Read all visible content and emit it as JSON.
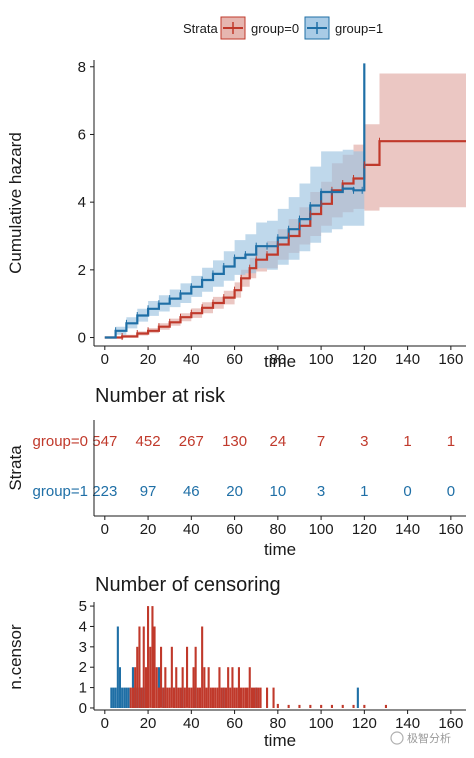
{
  "chart_data": [
    {
      "type": "line",
      "step": true,
      "xlabel": "time",
      "ylabel": "Cumulative hazard",
      "xlim": [
        -5,
        167
      ],
      "ylim": [
        -0.25,
        8.2
      ],
      "xticks": [
        0,
        20,
        40,
        60,
        80,
        100,
        120,
        140,
        160
      ],
      "yticks": [
        0,
        2,
        4,
        6,
        8
      ],
      "legend": {
        "title": "Strata",
        "position": "top"
      },
      "series": [
        {
          "name": "group=0",
          "color": "#c0392b",
          "fill": "#e0a9a3",
          "x": [
            0,
            8,
            15,
            20,
            25,
            30,
            35,
            40,
            45,
            50,
            55,
            60,
            63,
            67,
            70,
            75,
            80,
            85,
            90,
            95,
            100,
            105,
            110,
            115,
            120,
            127,
            167
          ],
          "y": [
            0,
            0.03,
            0.12,
            0.2,
            0.32,
            0.45,
            0.6,
            0.72,
            0.88,
            1.02,
            1.18,
            1.4,
            1.75,
            2.05,
            2.3,
            2.45,
            2.75,
            3.0,
            3.3,
            3.65,
            3.95,
            4.35,
            4.55,
            4.7,
            5.1,
            5.8,
            5.8
          ],
          "lower": [
            0,
            0,
            0.06,
            0.13,
            0.23,
            0.35,
            0.48,
            0.58,
            0.72,
            0.85,
            0.98,
            1.18,
            1.5,
            1.75,
            1.95,
            2.05,
            2.3,
            2.5,
            2.75,
            3.0,
            3.3,
            3.55,
            3.7,
            3.8,
            3.75,
            3.85,
            3.85
          ],
          "upper": [
            0,
            0.08,
            0.18,
            0.28,
            0.42,
            0.56,
            0.72,
            0.86,
            1.04,
            1.2,
            1.38,
            1.63,
            2.0,
            2.35,
            2.65,
            2.85,
            3.2,
            3.5,
            3.85,
            4.3,
            4.6,
            5.15,
            5.4,
            5.7,
            6.3,
            7.8,
            7.8
          ]
        },
        {
          "name": "group=1",
          "color": "#1f6fa6",
          "fill": "#9cc3e0",
          "x": [
            0,
            5,
            10,
            15,
            20,
            25,
            30,
            35,
            40,
            45,
            50,
            55,
            60,
            65,
            70,
            75,
            80,
            85,
            90,
            95,
            100,
            105,
            110,
            115,
            119,
            120
          ],
          "y": [
            0,
            0.2,
            0.42,
            0.65,
            0.85,
            1.0,
            1.15,
            1.3,
            1.5,
            1.7,
            1.88,
            2.1,
            2.35,
            2.45,
            2.7,
            2.7,
            2.95,
            3.2,
            3.5,
            3.9,
            4.3,
            4.3,
            4.4,
            4.35,
            4.35,
            8.1
          ],
          "lower": [
            0,
            0.08,
            0.27,
            0.47,
            0.64,
            0.77,
            0.9,
            1.02,
            1.2,
            1.35,
            1.5,
            1.68,
            1.85,
            1.9,
            2.05,
            2.0,
            2.15,
            2.3,
            2.55,
            2.8,
            3.1,
            3.2,
            3.3,
            3.3,
            3.3,
            3.3
          ],
          "upper": [
            0,
            0.32,
            0.6,
            0.85,
            1.08,
            1.25,
            1.42,
            1.6,
            1.82,
            2.06,
            2.28,
            2.55,
            2.88,
            3.05,
            3.4,
            3.45,
            3.8,
            4.15,
            4.55,
            5.05,
            5.5,
            5.5,
            5.55,
            5.5,
            5.5,
            5.5
          ]
        }
      ]
    },
    {
      "type": "table",
      "title": "Number at risk",
      "xlabel": "time",
      "ylabel": "Strata",
      "xticks": [
        0,
        20,
        40,
        60,
        80,
        100,
        120,
        140,
        160
      ],
      "rows": [
        {
          "label": "group=0",
          "color": "#c0392b",
          "values": [
            "547",
            "452",
            "267",
            "130",
            "24",
            "7",
            "3",
            "1",
            "1"
          ]
        },
        {
          "label": "group=1",
          "color": "#1f6fa6",
          "values": [
            "223",
            "97",
            "46",
            "20",
            "10",
            "3",
            "1",
            "0",
            "0"
          ]
        }
      ]
    },
    {
      "type": "bar",
      "title": "Number of censoring",
      "xlabel": "time",
      "ylabel": "n.censor",
      "xlim": [
        -5,
        167
      ],
      "ylim": [
        -0.1,
        5.2
      ],
      "xticks": [
        0,
        20,
        40,
        60,
        80,
        100,
        120,
        140,
        160
      ],
      "yticks": [
        0,
        1,
        2,
        3,
        4,
        5
      ],
      "series": [
        {
          "name": "group=1",
          "color": "#1f6fa6",
          "x": [
            3,
            4,
            5,
            6,
            7,
            8,
            9,
            10,
            11,
            13,
            14,
            15,
            17,
            18,
            19,
            25,
            27,
            32,
            36,
            42,
            55,
            62,
            70,
            117
          ],
          "y": [
            1,
            1,
            1,
            4,
            2,
            1,
            1,
            1,
            1,
            2,
            1,
            1,
            1,
            1,
            1,
            2,
            1,
            1,
            1,
            1,
            1,
            1,
            1,
            1
          ]
        },
        {
          "name": "group=0",
          "color": "#c0392b",
          "x": [
            12,
            13,
            14,
            15,
            16,
            17,
            18,
            19,
            20,
            21,
            22,
            23,
            24,
            25,
            26,
            27,
            28,
            29,
            30,
            31,
            32,
            33,
            34,
            35,
            36,
            37,
            38,
            39,
            40,
            41,
            42,
            43,
            44,
            45,
            46,
            47,
            48,
            49,
            50,
            51,
            52,
            53,
            54,
            55,
            56,
            57,
            58,
            59,
            60,
            61,
            62,
            63,
            64,
            65,
            66,
            67,
            68,
            69,
            70,
            71,
            72,
            75,
            78,
            80,
            85,
            90,
            95,
            100,
            105,
            110,
            115,
            120,
            130
          ],
          "y": [
            1,
            1,
            2,
            3,
            4,
            1,
            4,
            2,
            5,
            3,
            5,
            4,
            2,
            1,
            3,
            1,
            2,
            1,
            1,
            3,
            1,
            2,
            1,
            1,
            2,
            1,
            3,
            1,
            1,
            2,
            3,
            1,
            1,
            4,
            2,
            1,
            2,
            1,
            1,
            1,
            1,
            2,
            1,
            1,
            1,
            2,
            1,
            2,
            1,
            1,
            2,
            1,
            1,
            1,
            1,
            2,
            1,
            1,
            1,
            1,
            1,
            1,
            1,
            0.2,
            0.15,
            0.15,
            0.15,
            0.15,
            0.15,
            0.15,
            0.15,
            0.15,
            0.15
          ]
        }
      ]
    }
  ],
  "watermark": "极智分析"
}
